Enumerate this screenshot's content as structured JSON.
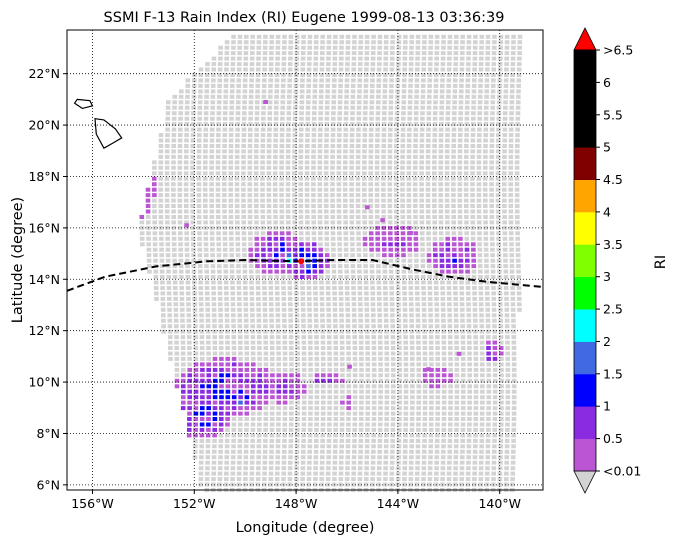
{
  "chart_data": {
    "type": "heatmap",
    "title": "SSMI F-13 Rain Index (RI) Eugene 1999-08-13 03:36:39",
    "xlabel": "Longitude (degree)",
    "ylabel": "Latitude (degree)",
    "xlim": [
      -157.0,
      -138.3
    ],
    "ylim": [
      5.8,
      23.7
    ],
    "x_ticks": [
      {
        "value": -156,
        "label": "156°W"
      },
      {
        "value": -152,
        "label": "152°W"
      },
      {
        "value": -148,
        "label": "148°W"
      },
      {
        "value": -144,
        "label": "144°W"
      },
      {
        "value": -140,
        "label": "140°W"
      }
    ],
    "y_ticks": [
      {
        "value": 6,
        "label": "6°N"
      },
      {
        "value": 8,
        "label": "8°N"
      },
      {
        "value": 10,
        "label": "10°N"
      },
      {
        "value": 12,
        "label": "12°N"
      },
      {
        "value": 14,
        "label": "14°N"
      },
      {
        "value": 16,
        "label": "16°N"
      },
      {
        "value": 18,
        "label": "18°N"
      },
      {
        "value": 20,
        "label": "20°N"
      },
      {
        "value": 22,
        "label": "22°N"
      }
    ],
    "grid": true,
    "colorbar": {
      "label": "RI",
      "under_color": "#d3d3d3",
      "under_label": "<0.01",
      "over_color": "#ff0000",
      "over_label": ">6.5",
      "bins": [
        {
          "from": 0.01,
          "to": 0.5,
          "color": "#ba55d3"
        },
        {
          "from": 0.5,
          "to": 1.0,
          "color": "#8a2be2"
        },
        {
          "from": 1.0,
          "to": 1.5,
          "color": "#0000ff"
        },
        {
          "from": 1.5,
          "to": 2.0,
          "color": "#4169e1"
        },
        {
          "from": 2.0,
          "to": 2.5,
          "color": "#00ffff"
        },
        {
          "from": 2.5,
          "to": 3.0,
          "color": "#00ff00"
        },
        {
          "from": 3.0,
          "to": 3.5,
          "color": "#7fff00"
        },
        {
          "from": 3.5,
          "to": 4.0,
          "color": "#ffff00"
        },
        {
          "from": 4.0,
          "to": 4.5,
          "color": "#ffa500"
        },
        {
          "from": 4.5,
          "to": 5.0,
          "color": "#800000"
        },
        {
          "from": 5.0,
          "to": 5.5,
          "color": "#000000"
        },
        {
          "from": 5.5,
          "to": 6.0,
          "color": "#000000"
        },
        {
          "from": 6.0,
          "to": 6.5,
          "color": "#000000"
        }
      ],
      "tick_labels": [
        "<0.01",
        "0.5",
        "1",
        "1.5",
        "2",
        "2.5",
        "3",
        "3.5",
        "4",
        "4.5",
        "5",
        "5.5",
        "6",
        ">6.5"
      ]
    },
    "swath": {
      "corners": [
        [
          -150.5,
          23.5
        ],
        [
          -139.1,
          23.5
        ],
        [
          -139.3,
          5.8
        ],
        [
          -151.7,
          5.8
        ],
        [
          -154.2,
          16.0
        ],
        [
          -153.0,
          21.0
        ]
      ],
      "pixel_step_deg": 0.25,
      "background_value": 0.0
    },
    "track": {
      "points": [
        [
          -157.0,
          13.55
        ],
        [
          -155.5,
          14.1
        ],
        [
          -153.5,
          14.5
        ],
        [
          -151.5,
          14.7
        ],
        [
          -150.0,
          14.75
        ],
        [
          -148.0,
          14.7
        ],
        [
          -146.5,
          14.75
        ],
        [
          -145.0,
          14.75
        ],
        [
          -143.5,
          14.4
        ],
        [
          -142.0,
          14.1
        ],
        [
          -140.5,
          13.9
        ],
        [
          -138.3,
          13.7
        ]
      ],
      "storm_center": [
        -147.8,
        14.7
      ]
    },
    "rain_clusters": [
      {
        "lon": -154.4,
        "lat": 17.5,
        "dlon": 0.7,
        "dlat": 1.0,
        "peak": 0.4
      },
      {
        "lon": -148.7,
        "lat": 15.0,
        "dlon": 0.9,
        "dlat": 0.7,
        "peak": 1.1
      },
      {
        "lon": -147.6,
        "lat": 14.7,
        "dlon": 0.7,
        "dlat": 0.6,
        "peak": 1.6
      },
      {
        "lon": -148.2,
        "lat": 14.8,
        "dlon": 0.25,
        "dlat": 0.2,
        "peak": 2.7
      },
      {
        "lon": -144.2,
        "lat": 15.5,
        "dlon": 0.9,
        "dlat": 0.5,
        "peak": 0.6
      },
      {
        "lon": -141.8,
        "lat": 14.9,
        "dlon": 0.8,
        "dlat": 0.6,
        "peak": 1.0
      },
      {
        "lon": -140.3,
        "lat": 11.2,
        "dlon": 0.3,
        "dlat": 0.4,
        "peak": 1.2
      },
      {
        "lon": -150.8,
        "lat": 9.8,
        "dlon": 1.6,
        "dlat": 0.9,
        "peak": 1.2
      },
      {
        "lon": -151.7,
        "lat": 8.7,
        "dlon": 0.9,
        "dlat": 0.7,
        "peak": 1.4
      },
      {
        "lon": -150.2,
        "lat": 9.4,
        "dlon": 0.3,
        "dlat": 0.3,
        "peak": 2.2
      },
      {
        "lon": -148.5,
        "lat": 9.8,
        "dlon": 0.7,
        "dlat": 0.5,
        "peak": 0.7
      },
      {
        "lon": -146.8,
        "lat": 10.1,
        "dlon": 0.5,
        "dlat": 0.2,
        "peak": 0.8
      },
      {
        "lon": -146.0,
        "lat": 9.2,
        "dlon": 0.2,
        "dlat": 0.2,
        "peak": 0.4
      },
      {
        "lon": -142.5,
        "lat": 10.2,
        "dlon": 0.5,
        "dlat": 0.3,
        "peak": 0.3
      }
    ],
    "land": {
      "big_island": [
        [
          -155.9,
          20.25
        ],
        [
          -155.85,
          19.65
        ],
        [
          -155.55,
          19.1
        ],
        [
          -155.2,
          19.3
        ],
        [
          -154.85,
          19.5
        ],
        [
          -155.1,
          19.85
        ],
        [
          -155.55,
          20.2
        ]
      ],
      "maui": [
        [
          -156.6,
          21.0
        ],
        [
          -156.1,
          20.95
        ],
        [
          -156.0,
          20.75
        ],
        [
          -156.4,
          20.65
        ],
        [
          -156.7,
          20.85
        ]
      ]
    }
  }
}
